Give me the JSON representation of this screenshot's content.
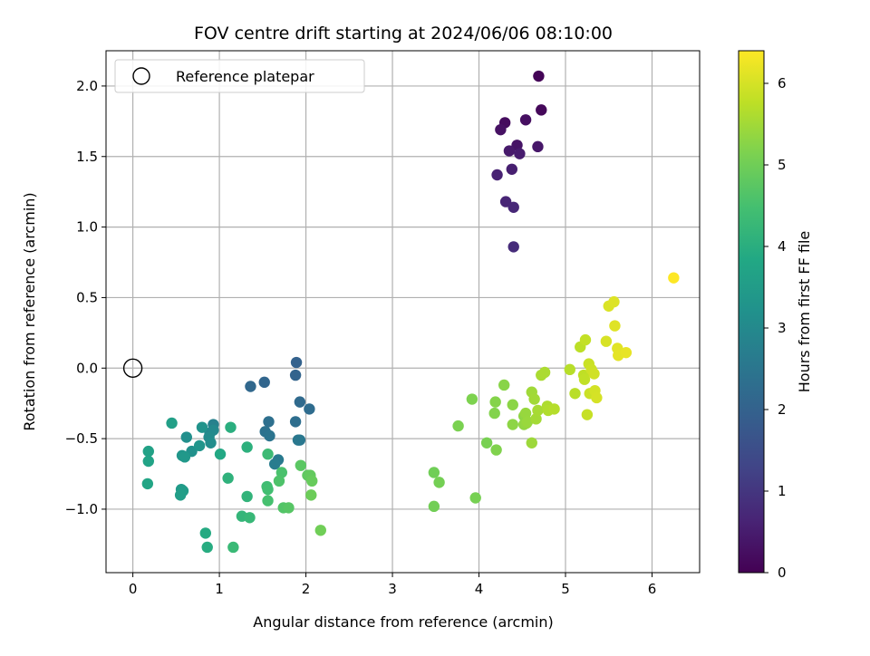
{
  "chart_data": {
    "type": "scatter",
    "title": "FOV centre drift starting at 2024/06/06 08:10:00",
    "xlabel": "Angular distance from reference (arcmin)",
    "ylabel": "Rotation from reference (arcmin)",
    "xlim": [
      -0.31,
      6.55
    ],
    "ylim": [
      -1.45,
      2.25
    ],
    "xticks": [
      0,
      1,
      2,
      3,
      4,
      5,
      6
    ],
    "xtick_labels": [
      "0",
      "1",
      "2",
      "3",
      "4",
      "5",
      "6"
    ],
    "yticks": [
      -1.0,
      -0.5,
      0.0,
      0.5,
      1.0,
      1.5,
      2.0
    ],
    "ytick_labels": [
      "−1.0",
      "−0.5",
      "0.0",
      "0.5",
      "1.0",
      "1.5",
      "2.0"
    ],
    "grid": true,
    "legend": {
      "placement": "top-left",
      "entries": [
        {
          "label": "Reference platepar",
          "marker": "hollow-circle"
        }
      ]
    },
    "reference_point": {
      "x": 0.0,
      "y": 0.0
    },
    "colorbar": {
      "label": "Hours from first FF file",
      "colormap": "viridis",
      "range": [
        0,
        6.4
      ],
      "ticks": [
        0,
        1,
        2,
        3,
        4,
        5,
        6
      ],
      "tick_labels": [
        "0",
        "1",
        "2",
        "3",
        "4",
        "5",
        "6"
      ]
    },
    "points": [
      {
        "x": 4.69,
        "y": 2.07,
        "h": 0.05
      },
      {
        "x": 4.72,
        "y": 1.83,
        "h": 0.12
      },
      {
        "x": 4.3,
        "y": 1.74,
        "h": 0.2
      },
      {
        "x": 4.54,
        "y": 1.76,
        "h": 0.25
      },
      {
        "x": 4.25,
        "y": 1.69,
        "h": 0.3
      },
      {
        "x": 4.44,
        "y": 1.58,
        "h": 0.35
      },
      {
        "x": 4.68,
        "y": 1.57,
        "h": 0.4
      },
      {
        "x": 4.35,
        "y": 1.54,
        "h": 0.45
      },
      {
        "x": 4.47,
        "y": 1.52,
        "h": 0.5
      },
      {
        "x": 4.38,
        "y": 1.41,
        "h": 0.55
      },
      {
        "x": 4.21,
        "y": 1.37,
        "h": 0.6
      },
      {
        "x": 4.31,
        "y": 1.18,
        "h": 0.65
      },
      {
        "x": 4.4,
        "y": 1.14,
        "h": 0.7
      },
      {
        "x": 4.4,
        "y": 0.86,
        "h": 0.8
      },
      {
        "x": 1.89,
        "y": 0.04,
        "h": 2.0
      },
      {
        "x": 1.88,
        "y": -0.05,
        "h": 2.05
      },
      {
        "x": 1.52,
        "y": -0.1,
        "h": 2.1
      },
      {
        "x": 1.36,
        "y": -0.13,
        "h": 2.15
      },
      {
        "x": 1.93,
        "y": -0.24,
        "h": 2.2
      },
      {
        "x": 2.04,
        "y": -0.29,
        "h": 2.25
      },
      {
        "x": 1.88,
        "y": -0.38,
        "h": 2.3
      },
      {
        "x": 1.57,
        "y": -0.38,
        "h": 2.35
      },
      {
        "x": 1.53,
        "y": -0.45,
        "h": 2.4
      },
      {
        "x": 1.58,
        "y": -0.48,
        "h": 2.45
      },
      {
        "x": 1.93,
        "y": -0.51,
        "h": 2.5
      },
      {
        "x": 1.91,
        "y": -0.51,
        "h": 2.55
      },
      {
        "x": 1.68,
        "y": -0.65,
        "h": 2.6
      },
      {
        "x": 1.64,
        "y": -0.68,
        "h": 2.65
      },
      {
        "x": 0.93,
        "y": -0.4,
        "h": 2.8
      },
      {
        "x": 0.89,
        "y": -0.46,
        "h": 2.9
      },
      {
        "x": 0.93,
        "y": -0.44,
        "h": 3.0
      },
      {
        "x": 0.88,
        "y": -0.49,
        "h": 3.05
      },
      {
        "x": 0.9,
        "y": -0.53,
        "h": 3.1
      },
      {
        "x": 0.62,
        "y": -0.49,
        "h": 3.15
      },
      {
        "x": 0.68,
        "y": -0.59,
        "h": 3.2
      },
      {
        "x": 0.8,
        "y": -0.42,
        "h": 3.25
      },
      {
        "x": 0.77,
        "y": -0.55,
        "h": 3.3
      },
      {
        "x": 0.57,
        "y": -0.62,
        "h": 3.35
      },
      {
        "x": 0.6,
        "y": -0.63,
        "h": 3.4
      },
      {
        "x": 0.56,
        "y": -0.86,
        "h": 3.45
      },
      {
        "x": 0.58,
        "y": -0.87,
        "h": 3.5
      },
      {
        "x": 0.55,
        "y": -0.9,
        "h": 3.55
      },
      {
        "x": 0.45,
        "y": -0.39,
        "h": 3.6
      },
      {
        "x": 0.18,
        "y": -0.59,
        "h": 3.65
      },
      {
        "x": 0.18,
        "y": -0.66,
        "h": 3.7
      },
      {
        "x": 0.17,
        "y": -0.82,
        "h": 3.75
      },
      {
        "x": 1.01,
        "y": -0.61,
        "h": 3.85
      },
      {
        "x": 0.84,
        "y": -1.17,
        "h": 3.9
      },
      {
        "x": 0.86,
        "y": -1.27,
        "h": 3.95
      },
      {
        "x": 1.13,
        "y": -0.42,
        "h": 4.0
      },
      {
        "x": 1.32,
        "y": -0.56,
        "h": 4.05
      },
      {
        "x": 1.1,
        "y": -0.78,
        "h": 4.1
      },
      {
        "x": 1.32,
        "y": -0.91,
        "h": 4.15
      },
      {
        "x": 1.26,
        "y": -1.05,
        "h": 4.2
      },
      {
        "x": 1.35,
        "y": -1.06,
        "h": 4.25
      },
      {
        "x": 1.16,
        "y": -1.27,
        "h": 4.3
      },
      {
        "x": 1.56,
        "y": -0.61,
        "h": 4.35
      },
      {
        "x": 1.55,
        "y": -0.84,
        "h": 4.4
      },
      {
        "x": 1.56,
        "y": -0.86,
        "h": 4.45
      },
      {
        "x": 1.56,
        "y": -0.94,
        "h": 4.5
      },
      {
        "x": 1.72,
        "y": -0.74,
        "h": 4.55
      },
      {
        "x": 1.69,
        "y": -0.8,
        "h": 4.6
      },
      {
        "x": 1.74,
        "y": -0.99,
        "h": 4.65
      },
      {
        "x": 1.8,
        "y": -0.99,
        "h": 4.7
      },
      {
        "x": 1.94,
        "y": -0.69,
        "h": 4.75
      },
      {
        "x": 2.02,
        "y": -0.76,
        "h": 4.8
      },
      {
        "x": 2.05,
        "y": -0.76,
        "h": 4.85
      },
      {
        "x": 2.07,
        "y": -0.8,
        "h": 4.9
      },
      {
        "x": 2.06,
        "y": -0.9,
        "h": 4.95
      },
      {
        "x": 2.17,
        "y": -1.15,
        "h": 5.0
      },
      {
        "x": 3.48,
        "y": -0.74,
        "h": 5.0
      },
      {
        "x": 3.48,
        "y": -0.98,
        "h": 5.02
      },
      {
        "x": 3.54,
        "y": -0.81,
        "h": 5.05
      },
      {
        "x": 3.96,
        "y": -0.92,
        "h": 5.08
      },
      {
        "x": 4.09,
        "y": -0.53,
        "h": 5.1
      },
      {
        "x": 3.76,
        "y": -0.41,
        "h": 5.12
      },
      {
        "x": 3.92,
        "y": -0.22,
        "h": 5.15
      },
      {
        "x": 4.2,
        "y": -0.58,
        "h": 5.18
      },
      {
        "x": 4.18,
        "y": -0.32,
        "h": 5.2
      },
      {
        "x": 4.19,
        "y": -0.24,
        "h": 5.22
      },
      {
        "x": 4.29,
        "y": -0.12,
        "h": 5.25
      },
      {
        "x": 4.39,
        "y": -0.26,
        "h": 5.28
      },
      {
        "x": 4.39,
        "y": -0.4,
        "h": 5.3
      },
      {
        "x": 4.52,
        "y": -0.34,
        "h": 5.32
      },
      {
        "x": 4.52,
        "y": -0.4,
        "h": 5.35
      },
      {
        "x": 4.55,
        "y": -0.39,
        "h": 5.38
      },
      {
        "x": 4.54,
        "y": -0.32,
        "h": 5.4
      },
      {
        "x": 4.56,
        "y": -0.38,
        "h": 5.42
      },
      {
        "x": 4.61,
        "y": -0.53,
        "h": 5.45
      },
      {
        "x": 4.61,
        "y": -0.17,
        "h": 5.48
      },
      {
        "x": 4.64,
        "y": -0.22,
        "h": 5.5
      },
      {
        "x": 4.66,
        "y": -0.36,
        "h": 5.52
      },
      {
        "x": 4.68,
        "y": -0.3,
        "h": 5.55
      },
      {
        "x": 4.72,
        "y": -0.05,
        "h": 5.58
      },
      {
        "x": 4.76,
        "y": -0.03,
        "h": 5.6
      },
      {
        "x": 4.79,
        "y": -0.27,
        "h": 5.62
      },
      {
        "x": 4.8,
        "y": -0.3,
        "h": 5.65
      },
      {
        "x": 4.87,
        "y": -0.29,
        "h": 5.68
      },
      {
        "x": 5.05,
        "y": -0.01,
        "h": 5.7
      },
      {
        "x": 5.11,
        "y": -0.18,
        "h": 5.72
      },
      {
        "x": 5.17,
        "y": 0.15,
        "h": 5.75
      },
      {
        "x": 5.21,
        "y": -0.05,
        "h": 5.78
      },
      {
        "x": 5.22,
        "y": -0.08,
        "h": 5.8
      },
      {
        "x": 5.23,
        "y": 0.2,
        "h": 5.82
      },
      {
        "x": 5.25,
        "y": -0.33,
        "h": 5.85
      },
      {
        "x": 5.27,
        "y": 0.03,
        "h": 5.88
      },
      {
        "x": 5.28,
        "y": -0.18,
        "h": 5.9
      },
      {
        "x": 5.3,
        "y": -0.01,
        "h": 5.92
      },
      {
        "x": 5.33,
        "y": -0.04,
        "h": 5.95
      },
      {
        "x": 5.34,
        "y": -0.16,
        "h": 5.98
      },
      {
        "x": 5.36,
        "y": -0.21,
        "h": 6.0
      },
      {
        "x": 5.47,
        "y": 0.19,
        "h": 6.02
      },
      {
        "x": 5.5,
        "y": 0.44,
        "h": 6.05
      },
      {
        "x": 5.56,
        "y": 0.47,
        "h": 6.08
      },
      {
        "x": 5.57,
        "y": 0.3,
        "h": 6.1
      },
      {
        "x": 5.6,
        "y": 0.14,
        "h": 6.12
      },
      {
        "x": 5.61,
        "y": 0.09,
        "h": 6.15
      },
      {
        "x": 5.7,
        "y": 0.11,
        "h": 6.18
      },
      {
        "x": 6.25,
        "y": 0.64,
        "h": 6.4
      }
    ]
  }
}
